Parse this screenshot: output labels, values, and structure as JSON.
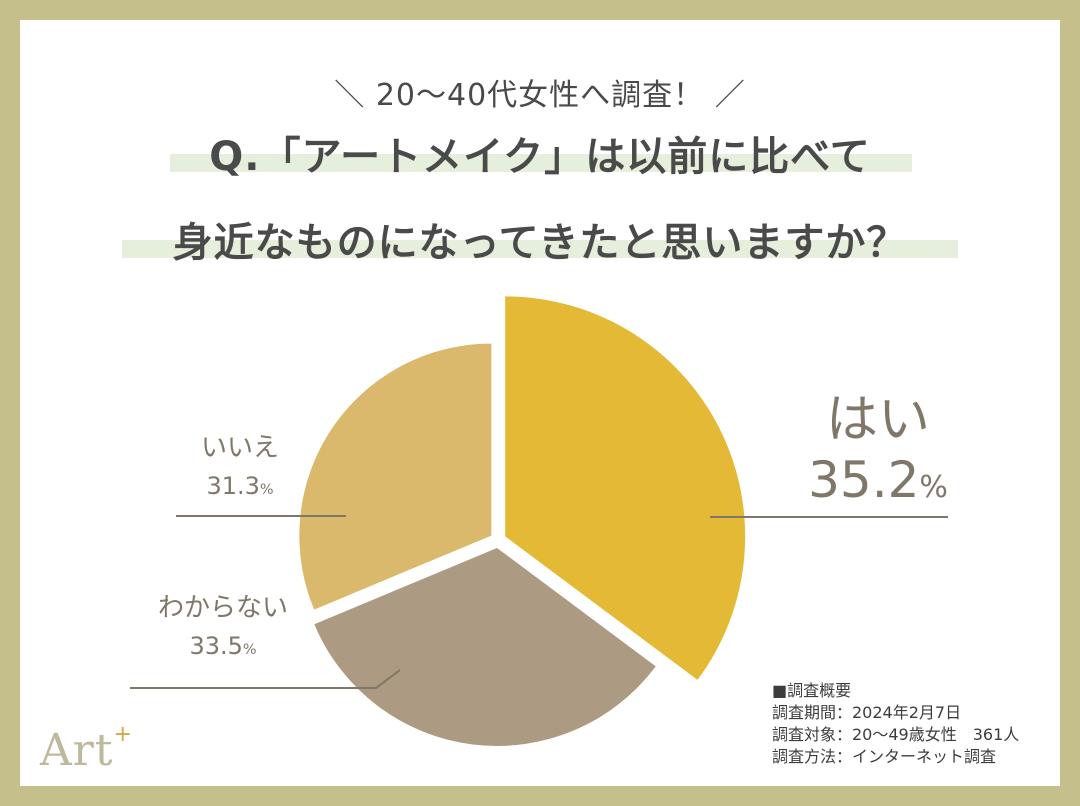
{
  "header": {
    "subtitle": "＼ 20〜40代女性へ調査！ ／",
    "question_line1": "Q.「アートメイク」は以前に比べて",
    "question_line2": "身近なものになってきたと思いますか？"
  },
  "colors": {
    "frame": "#c4bf8b",
    "highlight": "#e6eedc",
    "yes": "#e4b935",
    "no": "#dbb96c",
    "dont_know": "#ad9a82",
    "label_text": "#7f776a",
    "leader_line": "#7f776a"
  },
  "chart_data": {
    "type": "pie",
    "title": "Q.「アートメイク」は以前に比べて身近なものになってきたと思いますか？",
    "subtitle": "20〜40代女性へ調査！",
    "categories": [
      "はい",
      "わからない",
      "いいえ"
    ],
    "values": [
      35.2,
      33.5,
      31.3
    ],
    "unit": "%",
    "start_angle_deg": 0,
    "direction": "clockwise",
    "slices": [
      {
        "label": "はい",
        "value": 35.2,
        "color": "#e4b935",
        "radius": 240
      },
      {
        "label": "わからない",
        "value": 33.5,
        "color": "#ad9a82",
        "radius": 198
      },
      {
        "label": "いいえ",
        "value": 31.3,
        "color": "#dbb96c",
        "radius": 192
      }
    ],
    "legend": "none (direct labels with leader lines)"
  },
  "labels": {
    "yes": {
      "name": "はい",
      "value": "35.2",
      "unit": "%"
    },
    "no": {
      "name": "いいえ",
      "value": "31.3",
      "unit": "%"
    },
    "dont_know": {
      "name": "わからない",
      "value": "33.5",
      "unit": "%"
    }
  },
  "survey_overview": {
    "heading": "■調査概要",
    "period": "調査期間：2024年2月7日",
    "target": "調査対象：20〜49歳女性　361人",
    "method": "調査方法：インターネット調査"
  },
  "logo": {
    "text": "Art",
    "sup": "+"
  }
}
